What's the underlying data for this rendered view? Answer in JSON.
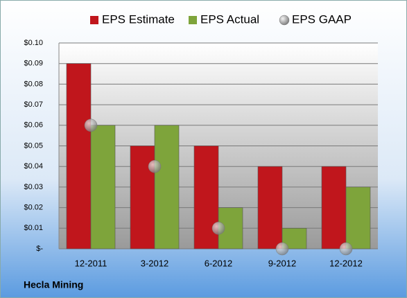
{
  "chart_data": {
    "type": "bar",
    "categories": [
      "12-2011",
      "3-2012",
      "6-2012",
      "9-2012",
      "12-2012"
    ],
    "series": [
      {
        "name": "EPS Estimate",
        "color": "#c0161c",
        "values": [
          0.09,
          0.05,
          0.05,
          0.04,
          0.04
        ]
      },
      {
        "name": "EPS Actual",
        "color": "#7ea43b",
        "values": [
          0.06,
          0.06,
          0.02,
          0.01,
          0.03
        ]
      },
      {
        "name": "EPS GAAP",
        "color": "#9a9a9a",
        "mark": "dot",
        "values": [
          0.06,
          0.04,
          0.01,
          0,
          0
        ]
      }
    ],
    "ylim": [
      0,
      0.1
    ],
    "yticks": [
      {
        "value": 0,
        "label": "$-"
      },
      {
        "value": 0.01,
        "label": "$0.01"
      },
      {
        "value": 0.02,
        "label": "$0.02"
      },
      {
        "value": 0.03,
        "label": "$0.03"
      },
      {
        "value": 0.04,
        "label": "$0.04"
      },
      {
        "value": 0.05,
        "label": "$0.05"
      },
      {
        "value": 0.06,
        "label": "$0.06"
      },
      {
        "value": 0.07,
        "label": "$0.07"
      },
      {
        "value": 0.08,
        "label": "$0.08"
      },
      {
        "value": 0.09,
        "label": "$0.09"
      },
      {
        "value": 0.1,
        "label": "$0.10"
      }
    ],
    "grid": true,
    "legend": "top",
    "footnote": "Hecla Mining"
  }
}
